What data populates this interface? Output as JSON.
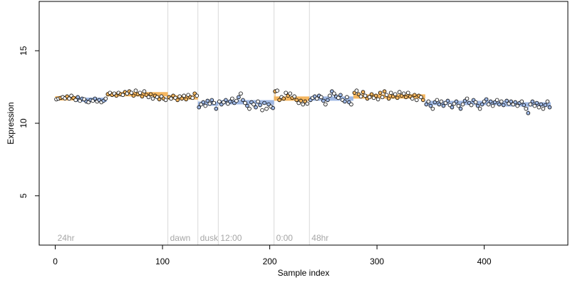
{
  "chart_data": {
    "type": "scatter",
    "title": "",
    "xlabel": "Sample index",
    "ylabel": "Expression",
    "xlim": [
      -15,
      478
    ],
    "ylim": [
      1.6,
      18.4
    ],
    "xticks": [
      0,
      100,
      200,
      300,
      400
    ],
    "yticks": [
      5,
      10,
      15
    ],
    "grid": false,
    "legend": "none",
    "colors": {
      "dark": "#000000",
      "orange": "#f4b660",
      "blue": "#9fb8e4",
      "vline": "#d9d9d9",
      "label": "#a6a6a6"
    },
    "regions": [
      {
        "label": "24hr",
        "start": 0
      },
      {
        "label": "dawn",
        "start": 105
      },
      {
        "label": "dusk",
        "start": 133
      },
      {
        "label": "12:00",
        "start": 152
      },
      {
        "label": "0:00",
        "start": 204
      },
      {
        "label": "48hr",
        "start": 237
      }
    ],
    "segments": [
      {
        "x0": 0,
        "x1": 20,
        "y": 11.72,
        "color": "orange"
      },
      {
        "x0": 20,
        "x1": 48,
        "y": 11.62,
        "color": "blue"
      },
      {
        "x0": 48,
        "x1": 105,
        "y": 12.0,
        "color": "orange"
      },
      {
        "x0": 105,
        "x1": 133,
        "y": 11.78,
        "color": "orange"
      },
      {
        "x0": 133,
        "x1": 152,
        "y": 11.35,
        "color": "blue"
      },
      {
        "x0": 152,
        "x1": 204,
        "y": 11.45,
        "color": "blue"
      },
      {
        "x0": 204,
        "x1": 237,
        "y": 11.7,
        "color": "orange"
      },
      {
        "x0": 237,
        "x1": 278,
        "y": 11.7,
        "color": "blue"
      },
      {
        "x0": 278,
        "x1": 345,
        "y": 11.85,
        "color": "orange"
      },
      {
        "x0": 345,
        "x1": 420,
        "y": 11.4,
        "color": "blue"
      },
      {
        "x0": 420,
        "x1": 462,
        "y": 11.3,
        "color": "blue"
      }
    ],
    "points": [
      [
        1,
        11.65,
        "d"
      ],
      [
        3,
        11.7,
        "d"
      ],
      [
        5,
        11.75,
        "o"
      ],
      [
        7,
        11.8,
        "d"
      ],
      [
        9,
        11.72,
        "d"
      ],
      [
        11,
        11.85,
        "o"
      ],
      [
        13,
        11.7,
        "d"
      ],
      [
        15,
        11.9,
        "d"
      ],
      [
        17,
        11.75,
        "o"
      ],
      [
        19,
        11.6,
        "d"
      ],
      [
        21,
        11.8,
        "b"
      ],
      [
        23,
        11.55,
        "d"
      ],
      [
        25,
        11.7,
        "b"
      ],
      [
        27,
        11.65,
        "d"
      ],
      [
        29,
        11.5,
        "b"
      ],
      [
        31,
        11.45,
        "d"
      ],
      [
        33,
        11.6,
        "b"
      ],
      [
        35,
        11.55,
        "d"
      ],
      [
        37,
        11.7,
        "b"
      ],
      [
        39,
        11.5,
        "d"
      ],
      [
        41,
        11.6,
        "b"
      ],
      [
        43,
        11.45,
        "d"
      ],
      [
        45,
        11.55,
        "b"
      ],
      [
        47,
        11.7,
        "d"
      ],
      [
        49,
        12.0,
        "o"
      ],
      [
        51,
        12.1,
        "d"
      ],
      [
        53,
        11.95,
        "o"
      ],
      [
        55,
        12.05,
        "d"
      ],
      [
        57,
        11.9,
        "o"
      ],
      [
        59,
        12.1,
        "d"
      ],
      [
        61,
        12.0,
        "o"
      ],
      [
        63,
        11.95,
        "d"
      ],
      [
        65,
        12.15,
        "o"
      ],
      [
        67,
        12.05,
        "d"
      ],
      [
        69,
        12.2,
        "o"
      ],
      [
        71,
        12.1,
        "d"
      ],
      [
        73,
        11.9,
        "o"
      ],
      [
        75,
        12.25,
        "d"
      ],
      [
        77,
        12.0,
        "o"
      ],
      [
        79,
        12.1,
        "d"
      ],
      [
        81,
        11.85,
        "o"
      ],
      [
        83,
        12.2,
        "d"
      ],
      [
        85,
        11.95,
        "o"
      ],
      [
        87,
        11.8,
        "d"
      ],
      [
        89,
        12.0,
        "o"
      ],
      [
        91,
        11.7,
        "d"
      ],
      [
        93,
        11.9,
        "o"
      ],
      [
        95,
        11.8,
        "d"
      ],
      [
        97,
        11.65,
        "o"
      ],
      [
        99,
        11.85,
        "d"
      ],
      [
        101,
        11.7,
        "o"
      ],
      [
        103,
        11.6,
        "d"
      ],
      [
        106,
        11.8,
        "o"
      ],
      [
        108,
        11.7,
        "d"
      ],
      [
        110,
        11.9,
        "o"
      ],
      [
        112,
        11.75,
        "d"
      ],
      [
        114,
        11.6,
        "o"
      ],
      [
        116,
        11.85,
        "d"
      ],
      [
        118,
        11.7,
        "o"
      ],
      [
        120,
        11.9,
        "d"
      ],
      [
        122,
        11.65,
        "o"
      ],
      [
        124,
        11.95,
        "d"
      ],
      [
        126,
        11.8,
        "o"
      ],
      [
        128,
        11.75,
        "d"
      ],
      [
        130,
        12.05,
        "o"
      ],
      [
        132,
        11.9,
        "d"
      ],
      [
        134,
        11.1,
        "b"
      ],
      [
        136,
        11.3,
        "d"
      ],
      [
        138,
        11.45,
        "b"
      ],
      [
        140,
        11.2,
        "d"
      ],
      [
        142,
        11.55,
        "b"
      ],
      [
        144,
        11.35,
        "d"
      ],
      [
        146,
        11.6,
        "b"
      ],
      [
        148,
        11.4,
        "d"
      ],
      [
        150,
        11.0,
        "b"
      ],
      [
        153,
        11.5,
        "d"
      ],
      [
        155,
        11.3,
        "b"
      ],
      [
        157,
        11.45,
        "d"
      ],
      [
        159,
        11.6,
        "b"
      ],
      [
        161,
        11.35,
        "d"
      ],
      [
        163,
        11.5,
        "b"
      ],
      [
        165,
        11.7,
        "d"
      ],
      [
        167,
        11.4,
        "b"
      ],
      [
        169,
        11.55,
        "d"
      ],
      [
        171,
        11.8,
        "b"
      ],
      [
        173,
        12.05,
        "d"
      ],
      [
        175,
        11.6,
        "b"
      ],
      [
        177,
        11.4,
        "d"
      ],
      [
        179,
        11.2,
        "b"
      ],
      [
        181,
        11.0,
        "d"
      ],
      [
        183,
        11.45,
        "b"
      ],
      [
        185,
        11.3,
        "d"
      ],
      [
        187,
        11.1,
        "b"
      ],
      [
        189,
        11.5,
        "d"
      ],
      [
        191,
        11.25,
        "b"
      ],
      [
        193,
        10.9,
        "d"
      ],
      [
        195,
        11.4,
        "b"
      ],
      [
        197,
        11.0,
        "d"
      ],
      [
        199,
        11.3,
        "b"
      ],
      [
        201,
        11.15,
        "d"
      ],
      [
        203,
        11.05,
        "b"
      ],
      [
        205,
        12.2,
        "o"
      ],
      [
        207,
        12.25,
        "d"
      ],
      [
        209,
        11.6,
        "o"
      ],
      [
        211,
        11.8,
        "d"
      ],
      [
        213,
        11.7,
        "o"
      ],
      [
        215,
        12.1,
        "d"
      ],
      [
        217,
        11.9,
        "o"
      ],
      [
        219,
        12.05,
        "d"
      ],
      [
        221,
        11.75,
        "o"
      ],
      [
        223,
        11.85,
        "d"
      ],
      [
        225,
        11.6,
        "o"
      ],
      [
        227,
        11.4,
        "d"
      ],
      [
        229,
        11.55,
        "o"
      ],
      [
        231,
        11.3,
        "d"
      ],
      [
        233,
        11.5,
        "o"
      ],
      [
        235,
        11.35,
        "d"
      ],
      [
        238,
        11.6,
        "b"
      ],
      [
        240,
        11.75,
        "d"
      ],
      [
        242,
        11.85,
        "b"
      ],
      [
        244,
        11.7,
        "d"
      ],
      [
        246,
        11.9,
        "b"
      ],
      [
        248,
        11.8,
        "d"
      ],
      [
        250,
        11.55,
        "b"
      ],
      [
        252,
        11.3,
        "d"
      ],
      [
        254,
        11.6,
        "b"
      ],
      [
        256,
        11.9,
        "d"
      ],
      [
        258,
        12.2,
        "b"
      ],
      [
        260,
        12.05,
        "d"
      ],
      [
        262,
        11.85,
        "b"
      ],
      [
        264,
        11.75,
        "d"
      ],
      [
        266,
        11.95,
        "b"
      ],
      [
        268,
        11.6,
        "d"
      ],
      [
        270,
        11.5,
        "b"
      ],
      [
        272,
        11.8,
        "d"
      ],
      [
        274,
        11.45,
        "b"
      ],
      [
        276,
        11.3,
        "d"
      ],
      [
        279,
        12.1,
        "o"
      ],
      [
        281,
        12.25,
        "d"
      ],
      [
        283,
        12.0,
        "o"
      ],
      [
        285,
        11.85,
        "d"
      ],
      [
        287,
        12.15,
        "o"
      ],
      [
        289,
        11.9,
        "d"
      ],
      [
        291,
        11.7,
        "o"
      ],
      [
        293,
        11.8,
        "d"
      ],
      [
        295,
        12.0,
        "o"
      ],
      [
        297,
        11.75,
        "d"
      ],
      [
        299,
        11.9,
        "o"
      ],
      [
        301,
        11.65,
        "d"
      ],
      [
        303,
        12.1,
        "o"
      ],
      [
        305,
        11.8,
        "d"
      ],
      [
        307,
        12.2,
        "o"
      ],
      [
        309,
        11.95,
        "d"
      ],
      [
        311,
        11.7,
        "o"
      ],
      [
        313,
        12.1,
        "d"
      ],
      [
        315,
        11.85,
        "o"
      ],
      [
        317,
        12.0,
        "d"
      ],
      [
        319,
        11.75,
        "o"
      ],
      [
        321,
        12.15,
        "d"
      ],
      [
        323,
        11.9,
        "o"
      ],
      [
        325,
        12.05,
        "d"
      ],
      [
        327,
        11.8,
        "o"
      ],
      [
        329,
        12.1,
        "d"
      ],
      [
        331,
        11.85,
        "o"
      ],
      [
        333,
        11.7,
        "d"
      ],
      [
        335,
        11.95,
        "o"
      ],
      [
        337,
        11.6,
        "d"
      ],
      [
        339,
        11.9,
        "o"
      ],
      [
        341,
        11.8,
        "d"
      ],
      [
        343,
        11.6,
        "o"
      ],
      [
        346,
        11.3,
        "b"
      ],
      [
        348,
        11.5,
        "d"
      ],
      [
        350,
        11.2,
        "b"
      ],
      [
        352,
        11.0,
        "d"
      ],
      [
        354,
        11.45,
        "b"
      ],
      [
        356,
        11.6,
        "d"
      ],
      [
        358,
        11.3,
        "b"
      ],
      [
        360,
        11.5,
        "d"
      ],
      [
        362,
        11.2,
        "b"
      ],
      [
        364,
        11.4,
        "d"
      ],
      [
        366,
        11.55,
        "b"
      ],
      [
        368,
        11.25,
        "d"
      ],
      [
        370,
        11.1,
        "b"
      ],
      [
        372,
        11.35,
        "d"
      ],
      [
        374,
        11.5,
        "b"
      ],
      [
        376,
        11.2,
        "d"
      ],
      [
        378,
        11.0,
        "b"
      ],
      [
        380,
        11.3,
        "d"
      ],
      [
        382,
        11.55,
        "b"
      ],
      [
        384,
        11.7,
        "d"
      ],
      [
        386,
        11.4,
        "b"
      ],
      [
        388,
        11.25,
        "d"
      ],
      [
        390,
        11.6,
        "b"
      ],
      [
        392,
        11.45,
        "d"
      ],
      [
        394,
        11.2,
        "b"
      ],
      [
        396,
        11.0,
        "d"
      ],
      [
        398,
        11.3,
        "b"
      ],
      [
        400,
        11.5,
        "d"
      ],
      [
        402,
        11.65,
        "b"
      ],
      [
        404,
        11.3,
        "d"
      ],
      [
        406,
        11.5,
        "b"
      ],
      [
        408,
        11.2,
        "d"
      ],
      [
        410,
        11.45,
        "b"
      ],
      [
        412,
        11.6,
        "d"
      ],
      [
        414,
        11.3,
        "b"
      ],
      [
        416,
        11.5,
        "d"
      ],
      [
        418,
        11.25,
        "b"
      ],
      [
        421,
        11.55,
        "b"
      ],
      [
        423,
        11.35,
        "d"
      ],
      [
        425,
        11.5,
        "b"
      ],
      [
        427,
        11.3,
        "d"
      ],
      [
        429,
        11.45,
        "b"
      ],
      [
        431,
        11.2,
        "d"
      ],
      [
        433,
        11.4,
        "b"
      ],
      [
        435,
        11.5,
        "d"
      ],
      [
        437,
        11.25,
        "b"
      ],
      [
        439,
        11.0,
        "d"
      ],
      [
        441,
        10.7,
        "b"
      ],
      [
        443,
        11.3,
        "d"
      ],
      [
        445,
        11.5,
        "b"
      ],
      [
        447,
        11.2,
        "d"
      ],
      [
        449,
        11.4,
        "b"
      ],
      [
        451,
        11.1,
        "d"
      ],
      [
        453,
        11.3,
        "b"
      ],
      [
        455,
        11.0,
        "d"
      ],
      [
        457,
        11.25,
        "b"
      ],
      [
        459,
        11.5,
        "d"
      ],
      [
        461,
        11.1,
        "b"
      ]
    ]
  }
}
